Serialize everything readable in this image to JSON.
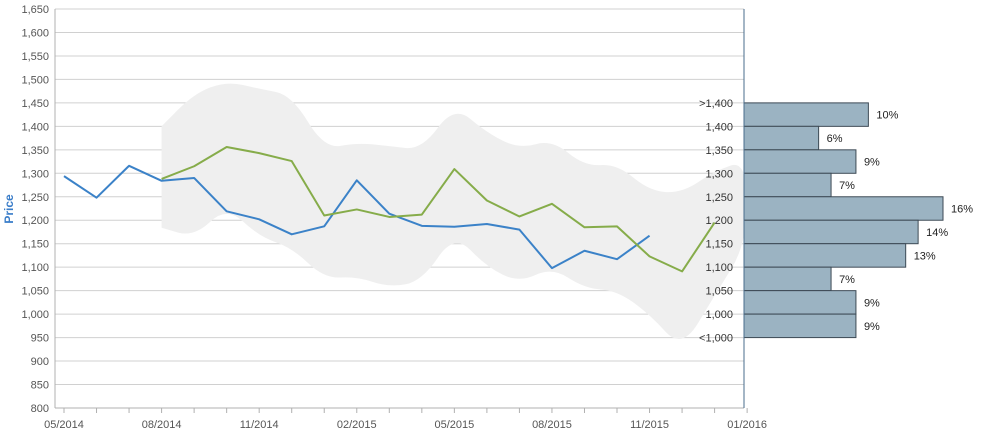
{
  "chart_data": {
    "type": "line",
    "ylabel": "Price",
    "ylim": [
      800,
      1650
    ],
    "y_ticks": [
      "1,650",
      "1,600",
      "1,550",
      "1,500",
      "1,450",
      "1,400",
      "1,350",
      "1,300",
      "1,250",
      "1,200",
      "1,150",
      "1,100",
      "1,050",
      "1,000",
      "950",
      "900",
      "850",
      "800"
    ],
    "x_tick_labels": [
      "05/2014",
      "08/2014",
      "11/2014",
      "02/2015",
      "05/2015",
      "08/2015",
      "11/2015",
      "01/2016"
    ],
    "grid": true,
    "series": [
      {
        "color": "#3b82c8",
        "x": [
          0,
          1,
          2,
          3,
          4,
          5,
          6,
          7,
          8,
          9,
          10,
          11,
          12,
          13,
          14,
          15,
          16,
          17,
          18
        ],
        "y": [
          1294,
          1248,
          1316,
          1284,
          1290,
          1219,
          1202,
          1170,
          1187,
          1285,
          1214,
          1188,
          1186,
          1192,
          1180,
          1098,
          1135,
          1117,
          1167
        ]
      },
      {
        "color": "#86ac4a",
        "x": [
          3,
          4,
          5,
          6,
          7,
          8,
          9,
          10,
          11,
          12,
          13,
          14,
          15,
          16,
          17,
          18,
          19,
          20
        ],
        "y": [
          1288,
          1315,
          1356,
          1343,
          1326,
          1210,
          1223,
          1207,
          1212,
          1309,
          1242,
          1208,
          1235,
          1185,
          1187,
          1123,
          1091,
          1195
        ]
      }
    ],
    "band": {
      "color": "#efefef",
      "x": [
        3,
        4,
        5,
        6,
        7,
        8,
        9,
        10,
        11,
        12,
        13,
        14,
        15,
        16,
        17,
        18,
        19,
        20,
        21
      ],
      "upper": [
        1400,
        1470,
        1496,
        1480,
        1467,
        1352,
        1365,
        1358,
        1350,
        1445,
        1386,
        1352,
        1372,
        1315,
        1320,
        1262,
        1258,
        1305,
        1328
      ],
      "lower": [
        1184,
        1164,
        1230,
        1165,
        1142,
        1076,
        1080,
        1057,
        1070,
        1172,
        1100,
        1067,
        1100,
        1055,
        1050,
        1000,
        924,
        1040,
        1150
      ]
    },
    "histogram": {
      "bins": [
        ">1,400",
        "1,400",
        "1,350",
        "1,300",
        "1,250",
        "1,200",
        "1,150",
        "1,100",
        "1,050",
        "1,000",
        "<1,000"
      ],
      "values": [
        10,
        6,
        9,
        7,
        16,
        14,
        13,
        7,
        9,
        9
      ],
      "labels": [
        "10%",
        "6%",
        "9%",
        "7%",
        "16%",
        "14%",
        "13%",
        "7%",
        "9%",
        "9%"
      ],
      "color": "#9bb3c2"
    }
  }
}
